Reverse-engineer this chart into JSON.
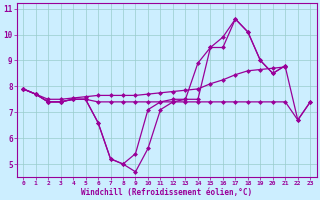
{
  "xlabel": "Windchill (Refroidissement éolien,°C)",
  "x": [
    0,
    1,
    2,
    3,
    4,
    5,
    6,
    7,
    8,
    9,
    10,
    11,
    12,
    13,
    14,
    15,
    16,
    17,
    18,
    19,
    20,
    21,
    22,
    23
  ],
  "line1": [
    7.9,
    7.7,
    7.4,
    7.4,
    7.5,
    7.5,
    6.6,
    5.2,
    5.0,
    4.7,
    5.6,
    7.1,
    7.4,
    7.5,
    8.9,
    9.5,
    9.5,
    10.6,
    10.1,
    9.0,
    8.5,
    8.8,
    null,
    null
  ],
  "line2": [
    7.9,
    7.7,
    7.4,
    7.4,
    7.5,
    7.5,
    6.6,
    5.2,
    5.0,
    5.4,
    7.1,
    7.4,
    7.5,
    7.5,
    7.5,
    9.5,
    9.9,
    10.6,
    10.1,
    9.0,
    8.5,
    8.8,
    null,
    null
  ],
  "line3": [
    7.9,
    7.7,
    7.4,
    7.4,
    7.5,
    7.5,
    7.4,
    7.4,
    7.4,
    7.4,
    7.4,
    7.4,
    7.4,
    7.4,
    7.4,
    7.4,
    7.4,
    7.4,
    7.4,
    7.4,
    7.4,
    7.4,
    6.7,
    7.4
  ],
  "line4": [
    7.9,
    7.7,
    7.5,
    7.5,
    7.55,
    7.6,
    7.65,
    7.65,
    7.65,
    7.65,
    7.7,
    7.75,
    7.8,
    7.85,
    7.9,
    8.1,
    8.25,
    8.45,
    8.6,
    8.65,
    8.7,
    8.75,
    6.7,
    7.4
  ],
  "ylim": [
    4.5,
    11.2
  ],
  "yticks": [
    5,
    6,
    7,
    8,
    9,
    10,
    11
  ],
  "color": "#990099",
  "bg_color": "#cceeff",
  "grid_color": "#99cccc",
  "linewidth": 0.9,
  "markersize": 2.5
}
